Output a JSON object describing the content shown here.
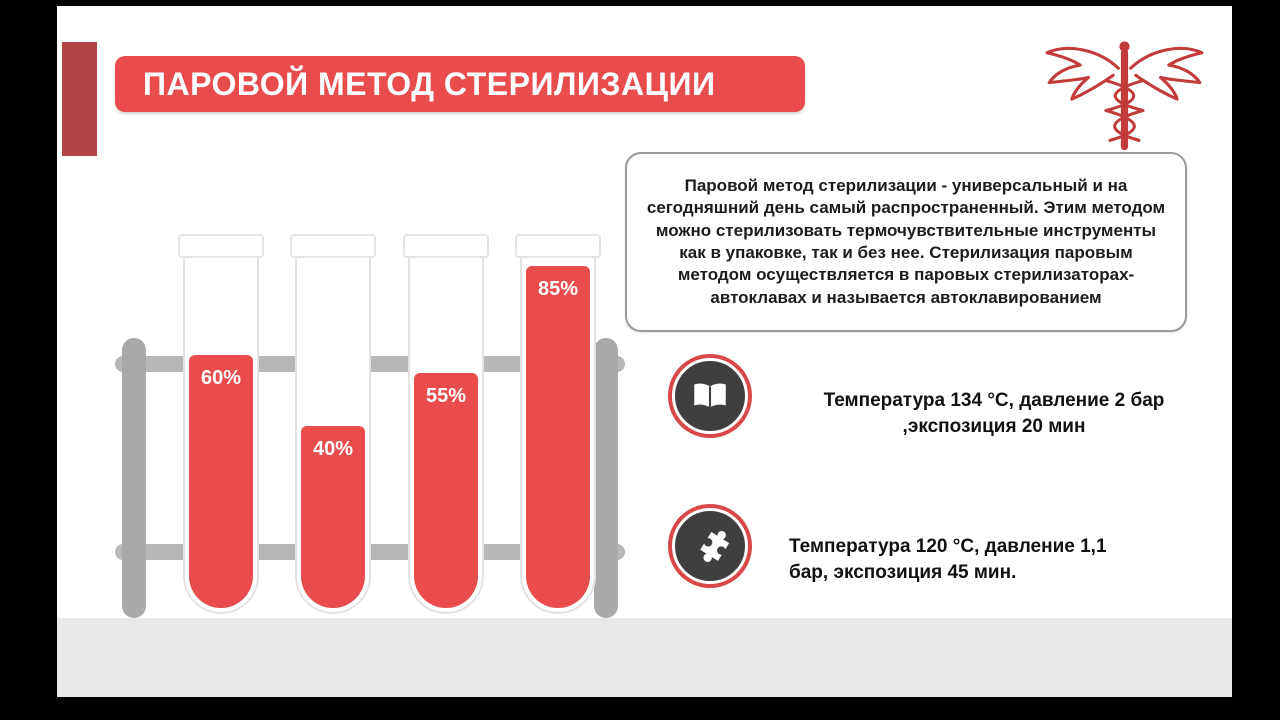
{
  "slide": {
    "title": "ПАРОВОЙ МЕТОД СТЕРИЛИЗАЦИИ",
    "description": "Паровой метод стерилизации - универсальный и на сегодняшний день самый распространенный. Этим методом можно стерилизовать термочувствительные инструменты как в упаковке, так и без нее. Стерилизация паровым методом осуществляется в паровых стерилизаторах-автоклавах и называется автоклавированием"
  },
  "chart_data": {
    "type": "bar",
    "categories": [
      "tube-1",
      "tube-2",
      "tube-3",
      "tube-4"
    ],
    "values": [
      60,
      40,
      55,
      85
    ],
    "labels": [
      "60%",
      "40%",
      "55%",
      "85%"
    ],
    "ylim": [
      0,
      100
    ],
    "title": "",
    "xlabel": "",
    "ylabel": ""
  },
  "facts": [
    {
      "icon": "book-icon",
      "line1": "Температура 134 °С, давление 2 бар",
      "line2": ",экспозиция 20 мин"
    },
    {
      "icon": "puzzle-icon",
      "line1": "Температура 120 °С, давление 1,1",
      "line2": "бар, экспозиция 45 мин."
    }
  ],
  "colors": {
    "red": "#e84c4c",
    "dark_red": "#b24444",
    "dark_circle": "#3f3f3f",
    "rack_gray": "#a9a9a9",
    "band_gray": "#e9e9e9"
  }
}
